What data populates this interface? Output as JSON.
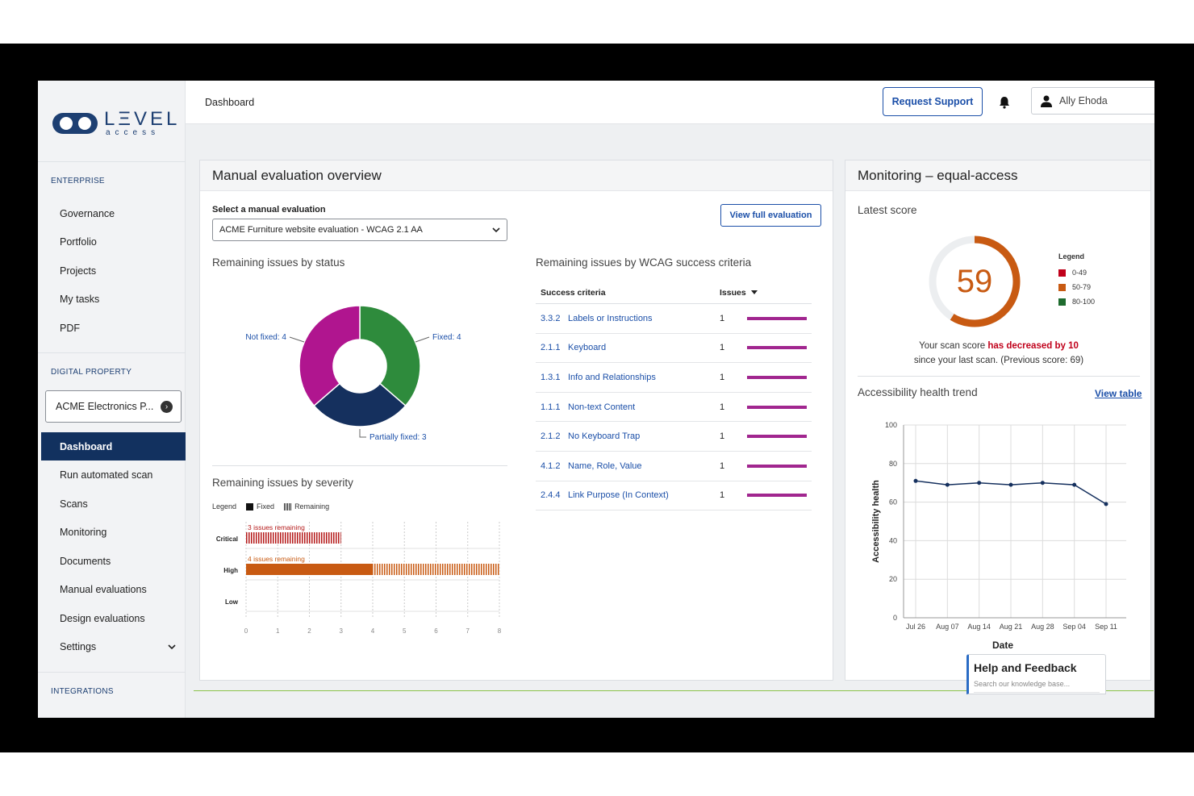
{
  "app": {
    "logo_main": "LΞVEL",
    "logo_sub": "access"
  },
  "sidebar": {
    "section_enterprise": "ENTERPRISE",
    "enterprise_items": [
      {
        "label": "Governance"
      },
      {
        "label": "Portfolio"
      },
      {
        "label": "Projects"
      },
      {
        "label": "My tasks"
      },
      {
        "label": "PDF"
      }
    ],
    "section_digital": "DIGITAL PROPERTY",
    "property_select": "ACME Electronics P...",
    "property_items": [
      {
        "label": "Dashboard",
        "active": true
      },
      {
        "label": "Run automated scan"
      },
      {
        "label": "Scans"
      },
      {
        "label": "Monitoring"
      },
      {
        "label": "Documents"
      },
      {
        "label": "Manual evaluations"
      },
      {
        "label": "Design evaluations"
      },
      {
        "label": "Settings"
      }
    ],
    "section_integrations": "INTEGRATIONS"
  },
  "header": {
    "breadcrumb": "Dashboard",
    "request_support": "Request Support",
    "user_name": "Ally Ehoda"
  },
  "manual": {
    "title": "Manual evaluation overview",
    "select_label": "Select a manual evaluation",
    "select_value": "ACME Furniture website evaluation - WCAG 2.1 AA",
    "view_full": "View full evaluation",
    "status_title": "Remaining issues by status",
    "severity_title": "Remaining issues by severity",
    "wcag_title": "Remaining issues by WCAG success criteria",
    "wcag_col_criteria": "Success criteria",
    "wcag_col_issues": "Issues",
    "wcag_rows": [
      {
        "num": "3.3.2",
        "name": "Labels or Instructions",
        "issues": "1"
      },
      {
        "num": "2.1.1",
        "name": "Keyboard",
        "issues": "1"
      },
      {
        "num": "1.3.1",
        "name": "Info and Relationships",
        "issues": "1"
      },
      {
        "num": "1.1.1",
        "name": "Non-text Content",
        "issues": "1"
      },
      {
        "num": "2.1.2",
        "name": "No Keyboard Trap",
        "issues": "1"
      },
      {
        "num": "4.1.2",
        "name": "Name, Role, Value",
        "issues": "1"
      },
      {
        "num": "2.4.4",
        "name": "Link Purpose (In Context)",
        "issues": "1"
      }
    ],
    "severity_legend": {
      "label": "Legend",
      "fixed": "Fixed",
      "remaining": "Remaining"
    }
  },
  "monitoring": {
    "title": "Monitoring – equal-access",
    "latest_score": "Latest score",
    "score": "59",
    "legend_title": "Legend",
    "legend": [
      {
        "label": "0-49",
        "color": "#c0001a"
      },
      {
        "label": "50-79",
        "color": "#c85a12"
      },
      {
        "label": "80-100",
        "color": "#1e6b2e"
      }
    ],
    "msg_prefix": "Your scan score ",
    "msg_change": "has decreased by 10",
    "msg_line2": "since your last scan. (Previous score: 69)",
    "trend_title": "Accessibility health trend",
    "view_table": "View table"
  },
  "help": {
    "title": "Help and Feedback",
    "placeholder": "Search our knowledge base..."
  },
  "chart_data": [
    {
      "type": "pie",
      "title": "Remaining issues by status",
      "categories": [
        "Fixed",
        "Partially fixed",
        "Not fixed"
      ],
      "values": [
        4,
        3,
        4
      ],
      "labels": [
        "Fixed: 4",
        "Partially fixed: 3",
        "Not fixed: 4"
      ],
      "colors": [
        "#2e8b3c",
        "#15305e",
        "#b0158f"
      ]
    },
    {
      "type": "bar",
      "title": "Remaining issues by severity",
      "orientation": "horizontal",
      "categories": [
        "Critical",
        "High",
        "Low"
      ],
      "series": [
        {
          "name": "Fixed",
          "values": [
            0,
            4,
            0
          ]
        },
        {
          "name": "Remaining",
          "values": [
            3,
            4,
            0
          ]
        }
      ],
      "annotations": [
        "3 issues remaining",
        "4 issues remaining",
        ""
      ],
      "xlim": [
        0,
        8
      ],
      "xticks": [
        "0",
        "1",
        "2",
        "3",
        "4",
        "5",
        "6",
        "7",
        "8"
      ]
    },
    {
      "type": "pie",
      "title": "Latest score",
      "values": [
        59,
        41
      ],
      "colors": [
        "#c85a12",
        "#eceef0"
      ]
    },
    {
      "type": "line",
      "title": "Accessibility health trend",
      "xlabel": "Date",
      "ylabel": "Accessibility health",
      "x": [
        "Jul 26",
        "Aug 07",
        "Aug 14",
        "Aug 21",
        "Aug 28",
        "Sep 04",
        "Sep 11"
      ],
      "values": [
        71,
        69,
        70,
        69,
        70,
        69,
        59
      ],
      "ylim": [
        0,
        100
      ],
      "yticks": [
        "0",
        "20",
        "40",
        "60",
        "80",
        "100"
      ],
      "grid": true
    }
  ]
}
